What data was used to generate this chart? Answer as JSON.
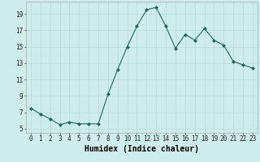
{
  "x": [
    0,
    1,
    2,
    3,
    4,
    5,
    6,
    7,
    8,
    9,
    10,
    11,
    12,
    13,
    14,
    15,
    16,
    17,
    18,
    19,
    20,
    21,
    22,
    23
  ],
  "y": [
    7.5,
    6.8,
    6.2,
    5.5,
    5.8,
    5.6,
    5.6,
    5.6,
    9.2,
    12.2,
    15.0,
    17.5,
    19.5,
    19.8,
    17.5,
    14.8,
    16.5,
    15.8,
    17.2,
    15.8,
    15.2,
    13.2,
    12.8,
    12.4
  ],
  "line_color": "#1a6b5a",
  "marker": "D",
  "marker_size": 2.0,
  "bg_color": "#ceecea",
  "grid_color": "#b8dbd8",
  "xlabel": "Humidex (Indice chaleur)",
  "xlabel_fontsize": 7,
  "tick_fontsize": 5.5,
  "yticks": [
    5,
    7,
    9,
    11,
    13,
    15,
    17,
    19
  ],
  "xticks": [
    0,
    1,
    2,
    3,
    4,
    5,
    6,
    7,
    8,
    9,
    10,
    11,
    12,
    13,
    14,
    15,
    16,
    17,
    18,
    19,
    20,
    21,
    22,
    23
  ],
  "ylim": [
    4.5,
    20.5
  ],
  "xlim": [
    -0.5,
    23.5
  ]
}
